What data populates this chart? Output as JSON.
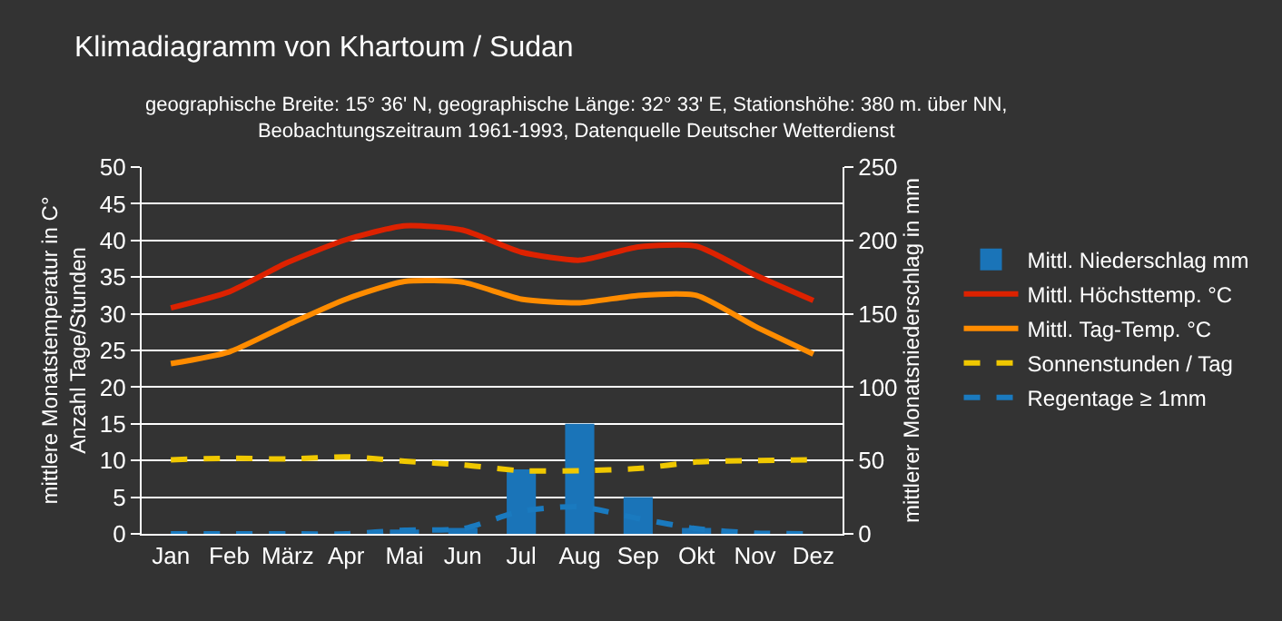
{
  "chart_data": {
    "type": "line",
    "title": "Klimadiagramm von Khartoum / Sudan",
    "subtitle": "geographische Breite: 15° 36' N, geographische Länge: 32° 33' E, Stationshöhe: 380 m. über NN,\nBeobachtungszeitraum 1961-1993, Datenquelle Deutscher Wetterdienst",
    "ylabel": "mittlere Monatstemperatur in C°\nAnzahl Tage/Stunden",
    "y2label": "mittlerer Monatsniederschlag in mm",
    "categories": [
      "Jan",
      "Feb",
      "März",
      "Apr",
      "Mai",
      "Jun",
      "Jul",
      "Aug",
      "Sep",
      "Okt",
      "Nov",
      "Dez"
    ],
    "series": [
      {
        "name": "Mittl. Niederschlag mm",
        "type": "bar",
        "axis": "y2",
        "color": "#1a74b8",
        "values": [
          0,
          0,
          0,
          0,
          3,
          4,
          44,
          75,
          25,
          4,
          0,
          0
        ]
      },
      {
        "name": "Mittl. Höchsttemp. °C",
        "color": "#dd2200",
        "line_style": "solid",
        "values": [
          30.8,
          33.0,
          37.0,
          40.1,
          42.0,
          41.4,
          38.4,
          37.3,
          39.1,
          39.2,
          35.3,
          31.8
        ]
      },
      {
        "name": "Mittl. Tag-Temp. °C",
        "color": "#ff8c00",
        "line_style": "solid",
        "values": [
          23.2,
          24.8,
          28.5,
          32.0,
          34.4,
          34.3,
          32.0,
          31.5,
          32.5,
          32.5,
          28.3,
          24.5
        ]
      },
      {
        "name": "Sonnenstunden / Tag",
        "color": "#f0c800",
        "line_style": "dashed",
        "values": [
          10.1,
          10.3,
          10.2,
          10.5,
          9.9,
          9.4,
          8.6,
          8.6,
          8.9,
          9.8,
          10.0,
          10.1
        ]
      },
      {
        "name": "Regentage ≥ 1mm",
        "color": "#1a7abf",
        "line_style": "dashed",
        "values": [
          0,
          0,
          0,
          0,
          0.5,
          0.7,
          3.1,
          3.7,
          2.1,
          0.7,
          0.1,
          0
        ]
      }
    ],
    "ylim": [
      0,
      50
    ],
    "yticks": [
      0,
      5,
      10,
      15,
      20,
      25,
      30,
      35,
      40,
      45,
      50
    ],
    "y2lim": [
      0,
      250
    ],
    "y2ticks": [
      0,
      50,
      100,
      150,
      200,
      250
    ],
    "grid": "y",
    "legend": "right",
    "marker": "none"
  }
}
